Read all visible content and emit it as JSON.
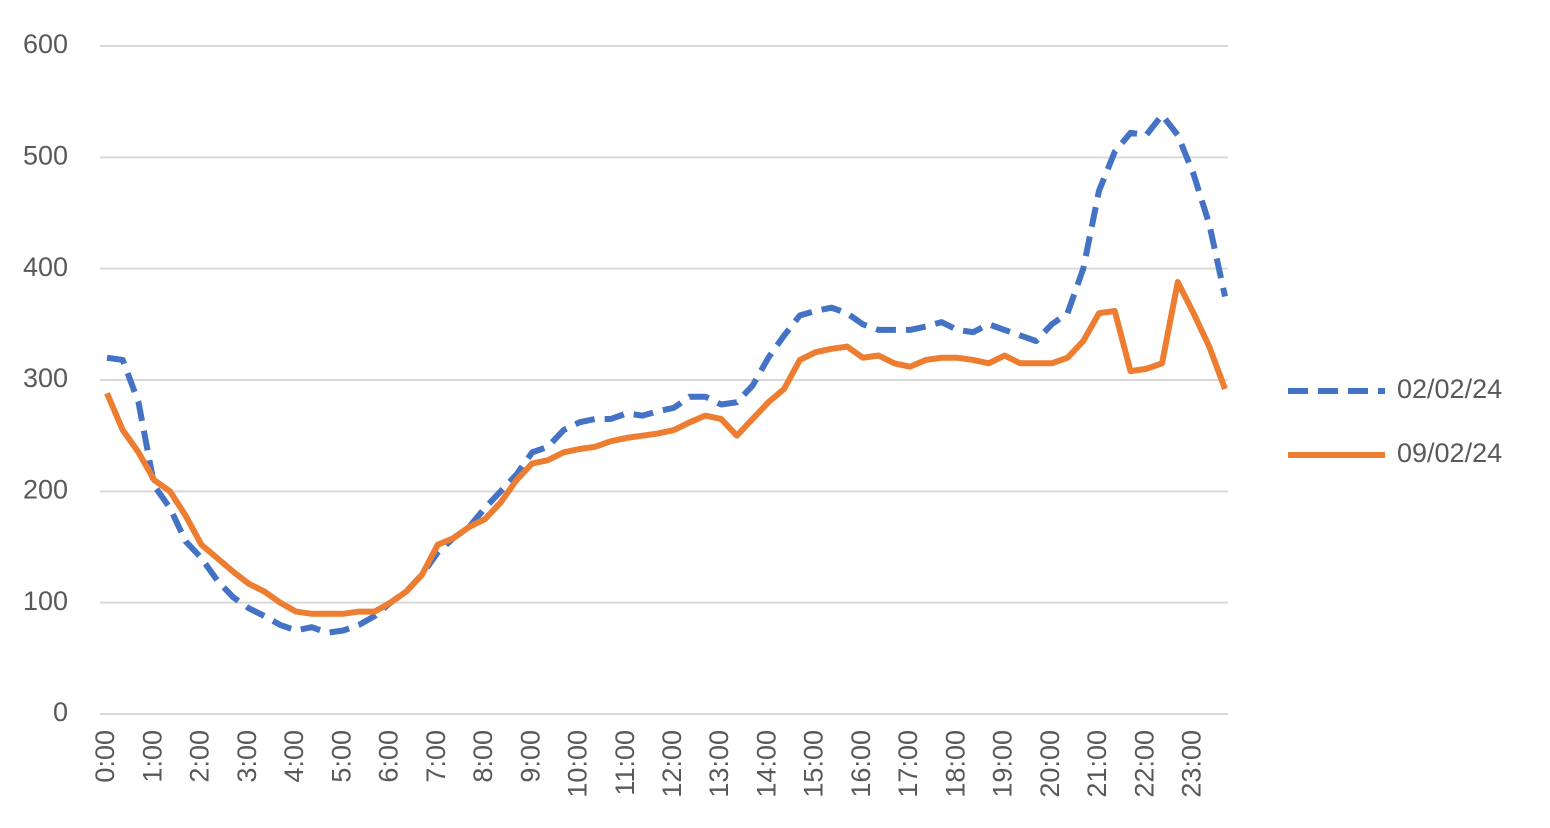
{
  "chart_data": {
    "type": "line",
    "categories": [
      "0:00",
      null,
      null,
      "1:00",
      null,
      null,
      "2:00",
      null,
      null,
      "3:00",
      null,
      null,
      "4:00",
      null,
      null,
      "5:00",
      null,
      null,
      "6:00",
      null,
      null,
      "7:00",
      null,
      null,
      "8:00",
      null,
      null,
      "9:00",
      null,
      null,
      "10:00",
      null,
      null,
      "11:00",
      null,
      null,
      "12:00",
      null,
      null,
      "13:00",
      null,
      null,
      "14:00",
      null,
      null,
      "15:00",
      null,
      null,
      "16:00",
      null,
      null,
      "17:00",
      null,
      null,
      "18:00",
      null,
      null,
      "19:00",
      null,
      null,
      "20:00",
      null,
      null,
      "21:00",
      null,
      null,
      "22:00",
      null,
      null,
      "23:00",
      null,
      null
    ],
    "series": [
      {
        "name": "02/02/24",
        "color": "#4472c4",
        "dash": true,
        "values": [
          320,
          318,
          280,
          205,
          185,
          155,
          140,
          120,
          105,
          95,
          88,
          80,
          75,
          78,
          73,
          75,
          80,
          88,
          100,
          110,
          125,
          145,
          158,
          168,
          185,
          200,
          215,
          235,
          240,
          255,
          262,
          265,
          265,
          270,
          268,
          272,
          275,
          285,
          285,
          278,
          280,
          295,
          320,
          340,
          358,
          362,
          365,
          360,
          350,
          345,
          345,
          345,
          348,
          352,
          345,
          343,
          350,
          345,
          340,
          335,
          350,
          360,
          400,
          470,
          505,
          522,
          520,
          538,
          520,
          485,
          440,
          375
        ]
      },
      {
        "name": "09/02/24",
        "color": "#ed7d31",
        "dash": false,
        "values": [
          288,
          255,
          235,
          210,
          200,
          178,
          152,
          140,
          128,
          117,
          110,
          100,
          92,
          90,
          90,
          90,
          92,
          92,
          100,
          110,
          125,
          152,
          158,
          168,
          175,
          190,
          210,
          225,
          228,
          235,
          238,
          240,
          245,
          248,
          250,
          252,
          255,
          262,
          268,
          265,
          250,
          265,
          280,
          292,
          318,
          325,
          328,
          330,
          320,
          322,
          315,
          312,
          318,
          320,
          320,
          318,
          315,
          322,
          315,
          315,
          315,
          320,
          335,
          360,
          362,
          308,
          310,
          315,
          388,
          360,
          330,
          292
        ]
      }
    ],
    "ylim": [
      0,
      600
    ],
    "yticks": [
      0,
      100,
      200,
      300,
      400,
      500,
      600
    ],
    "grid": true,
    "legend": "right"
  }
}
